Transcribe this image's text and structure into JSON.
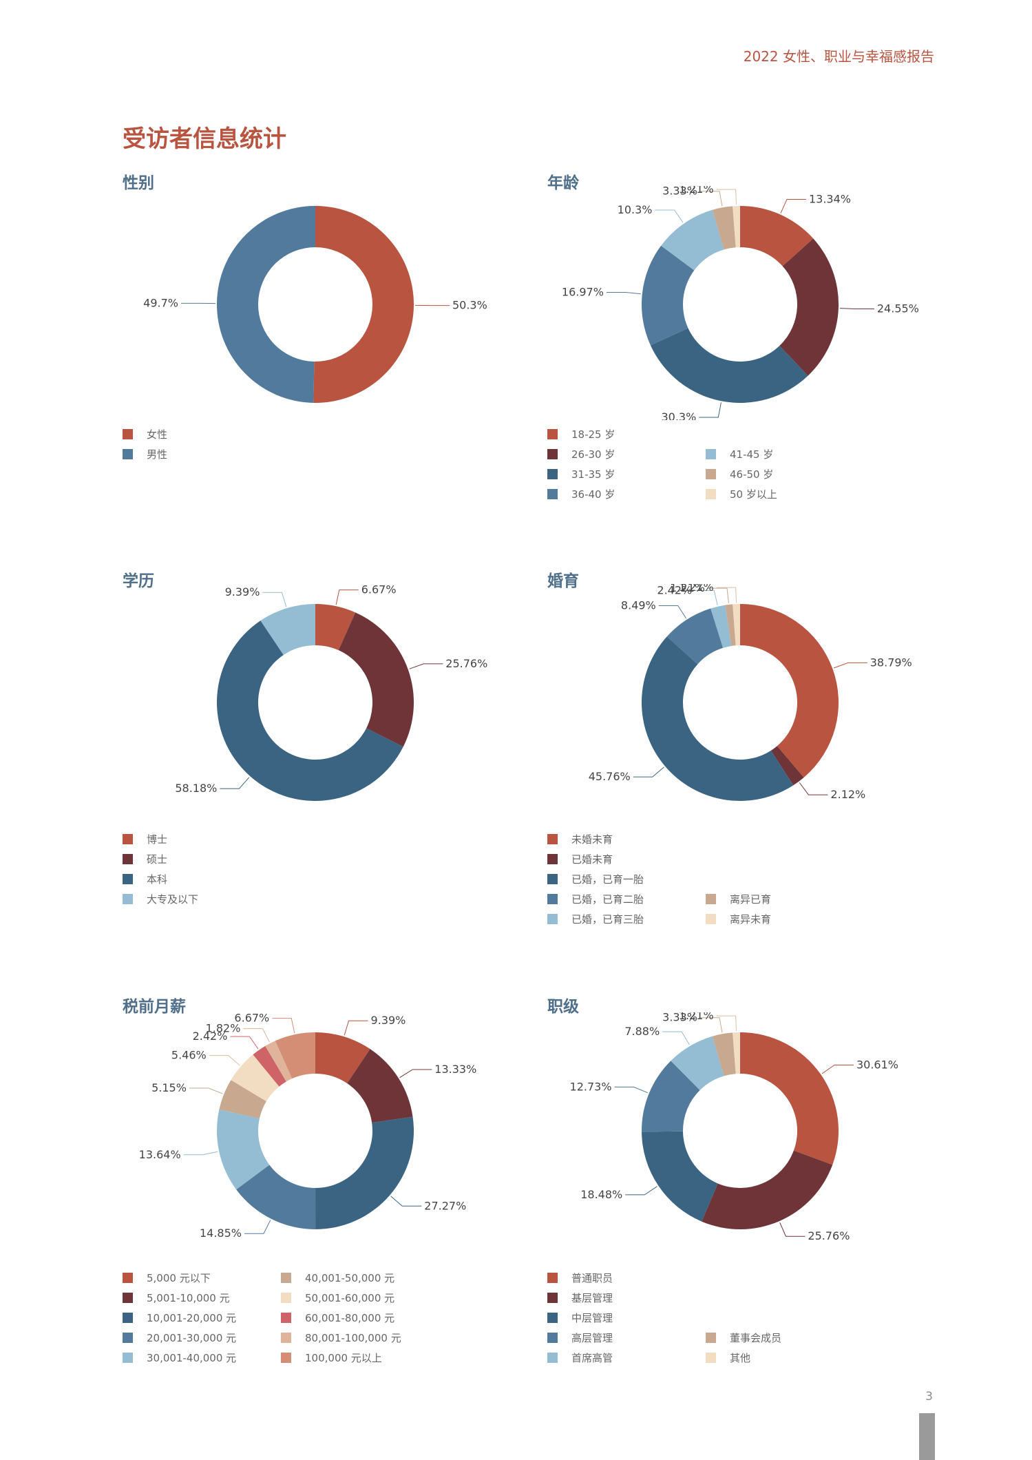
{
  "header": {
    "title": "2022 女性、职业与幸福感报告"
  },
  "page": {
    "title": "受访者信息统计",
    "number": "3"
  },
  "chart_data": [
    {
      "type": "pie",
      "title": "性别",
      "categories": [
        "女性",
        "男性"
      ],
      "values": [
        50.3,
        49.7
      ],
      "value_labels": [
        "50.3%",
        "49.7%"
      ],
      "colors": [
        "#b8543f",
        "#527a9c"
      ],
      "legend_columns": [
        [
          "女性",
          "男性"
        ]
      ]
    },
    {
      "type": "pie",
      "title": "年龄",
      "categories": [
        "18-25 岁",
        "26-30 岁",
        "31-35 岁",
        "36-40 岁",
        "41-45 岁",
        "46-50 岁",
        "50 岁以上"
      ],
      "values": [
        13.34,
        24.55,
        30.3,
        16.97,
        10.3,
        3.33,
        1.21
      ],
      "value_labels": [
        "13.34%",
        "24.55%",
        "30.3%",
        "16.97%",
        "10.3%",
        "3.33%",
        "1.21%"
      ],
      "colors": [
        "#b8543f",
        "#6e3438",
        "#3a6482",
        "#527a9c",
        "#94bcd3",
        "#c8a88e",
        "#f2dcc2"
      ],
      "legend_columns": [
        [
          "18-25 岁",
          "26-30 岁",
          "31-35 岁",
          "36-40 岁"
        ],
        [
          "41-45 岁",
          "46-50 岁",
          "50 岁以上"
        ]
      ]
    },
    {
      "type": "pie",
      "title": "学历",
      "categories": [
        "博士",
        "硕士",
        "本科",
        "大专及以下"
      ],
      "values": [
        6.67,
        25.76,
        58.18,
        9.39
      ],
      "value_labels": [
        "6.67%",
        "25.76%",
        "58.18%",
        "9.39%"
      ],
      "colors": [
        "#b8543f",
        "#6e3438",
        "#3a6482",
        "#94bcd3"
      ],
      "legend_columns": [
        [
          "博士",
          "硕士",
          "本科",
          "大专及以下"
        ]
      ]
    },
    {
      "type": "pie",
      "title": "婚育",
      "categories": [
        "未婚未育",
        "已婚未育",
        "已婚，已育一胎",
        "已婚，已育二胎",
        "已婚，已育三胎",
        "离异已育",
        "离异未育"
      ],
      "values": [
        38.79,
        2.12,
        45.76,
        8.49,
        2.42,
        1.21,
        1.21
      ],
      "value_labels": [
        "38.79%",
        "2.12%",
        "45.76%",
        "8.49%",
        "2.42%",
        "1.21%",
        "1.21%"
      ],
      "colors": [
        "#b8543f",
        "#6e3438",
        "#3a6482",
        "#527a9c",
        "#94bcd3",
        "#c8a88e",
        "#f2dcc2"
      ],
      "legend_columns": [
        [
          "未婚未育",
          "已婚未育",
          "已婚，已育一胎",
          "已婚，已育二胎",
          "已婚，已育三胎"
        ],
        [
          "离异已育",
          "离异未育"
        ]
      ]
    },
    {
      "type": "pie",
      "title": "税前月薪",
      "categories": [
        "5,000 元以下",
        "5,001-10,000 元",
        "10,001-20,000 元",
        "20,001-30,000 元",
        "30,001-40,000 元",
        "40,001-50,000 元",
        "50,001-60,000 元",
        "60,001-80,000 元",
        "80,001-100,000 元",
        "100,000 元以上"
      ],
      "values": [
        9.39,
        13.33,
        27.27,
        14.85,
        13.64,
        5.15,
        5.46,
        2.42,
        1.82,
        6.67
      ],
      "value_labels": [
        "9.39%",
        "13.33%",
        "27.27%",
        "14.85%",
        "13.64%",
        "5.15%",
        "5.46%",
        "2.42%",
        "1.82%",
        "6.67%"
      ],
      "colors": [
        "#b8543f",
        "#6e3438",
        "#3a6482",
        "#527a9c",
        "#94bcd3",
        "#c8a88e",
        "#f2dcc2",
        "#cf6468",
        "#e0b49a",
        "#d48e76"
      ],
      "legend_columns": [
        [
          "5,000 元以下",
          "5,001-10,000 元",
          "10,001-20,000 元",
          "20,001-30,000 元",
          "30,001-40,000 元"
        ],
        [
          "40,001-50,000 元",
          "50,001-60,000 元",
          "60,001-80,000 元",
          "80,001-100,000 元",
          "100,000 元以上"
        ]
      ]
    },
    {
      "type": "pie",
      "title": "职级",
      "categories": [
        "普通职员",
        "基层管理",
        "中层管理",
        "高层管理",
        "首席高管",
        "董事会成员",
        "其他"
      ],
      "values": [
        30.61,
        25.76,
        18.48,
        12.73,
        7.88,
        3.33,
        1.21
      ],
      "value_labels": [
        "30.61%",
        "25.76%",
        "18.48%",
        "12.73%",
        "7.88%",
        "3.33%",
        "1.21%"
      ],
      "colors": [
        "#b8543f",
        "#6e3438",
        "#3a6482",
        "#527a9c",
        "#94bcd3",
        "#c8a88e",
        "#f2dcc2"
      ],
      "legend_columns": [
        [
          "普通职员",
          "基层管理",
          "中层管理",
          "高层管理",
          "首席高管"
        ],
        [
          "董事会成员",
          "其他"
        ]
      ]
    }
  ]
}
